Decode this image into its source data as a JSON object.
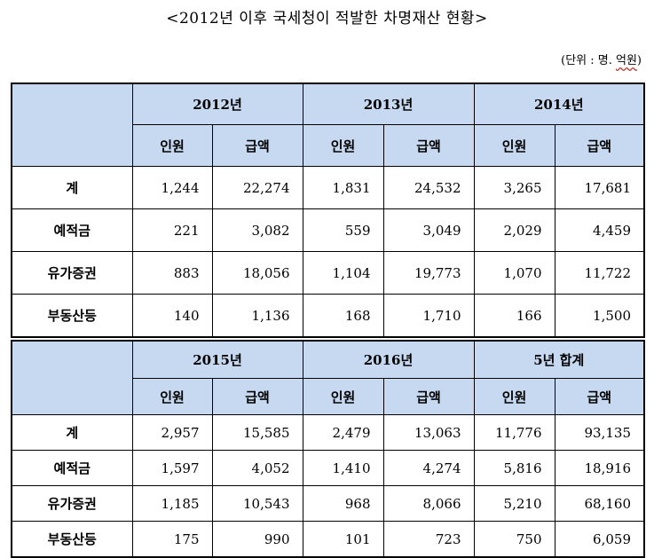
{
  "title": "<2012년 이후 국세청이 적발한 차명재산 현황>",
  "unit_prefix": "(단위 : 명. ",
  "unit_underlined": "억원",
  "unit_suffix": ")",
  "tables": [
    {
      "years": [
        "2012년",
        "2013년",
        "2014년"
      ],
      "sub_headers": [
        "인원",
        "급액",
        "인원",
        "급액",
        "인원",
        "급액"
      ],
      "rows": [
        {
          "label": "계",
          "values": [
            "1,244",
            "22,274",
            "1,831",
            "24,532",
            "3,265",
            "17,681"
          ]
        },
        {
          "label": "예적금",
          "values": [
            "221",
            "3,082",
            "559",
            "3,049",
            "2,029",
            "4,459"
          ]
        },
        {
          "label": "유가증권",
          "values": [
            "883",
            "18,056",
            "1,104",
            "19,773",
            "1,070",
            "11,722"
          ]
        },
        {
          "label": "부동산등",
          "values": [
            "140",
            "1,136",
            "168",
            "1,710",
            "166",
            "1,500"
          ]
        }
      ]
    },
    {
      "years": [
        "2015년",
        "2016년",
        "5년 합계"
      ],
      "sub_headers": [
        "인원",
        "급액",
        "인원",
        "급액",
        "인원",
        "급액"
      ],
      "rows": [
        {
          "label": "계",
          "values": [
            "2,957",
            "15,585",
            "2,479",
            "13,063",
            "11,776",
            "93,135"
          ]
        },
        {
          "label": "예적금",
          "values": [
            "1,597",
            "4,052",
            "1,410",
            "4,274",
            "5,816",
            "18,916"
          ]
        },
        {
          "label": "유가증권",
          "values": [
            "1,185",
            "10,543",
            "968",
            "8,066",
            "5,210",
            "68,160"
          ]
        },
        {
          "label": "부동산등",
          "values": [
            "175",
            "990",
            "101",
            "723",
            "750",
            "6,059"
          ]
        }
      ]
    }
  ]
}
